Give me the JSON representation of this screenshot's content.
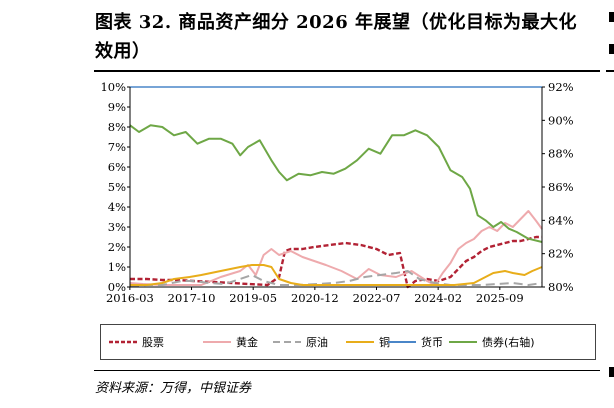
{
  "title": "图表 32. 商品资产细分 2026 年展望（优化目标为最大化效用）",
  "source": "资料来源：万得，中银证券",
  "colors": {
    "stock": "#b22234",
    "gold": "#eeaaad",
    "oil": "#a6a6a6",
    "copper": "#e8ad1a",
    "money": "#4a86c8",
    "bond": "#6ea746"
  },
  "chart_data": {
    "type": "line",
    "x_ticks": [
      "2016-03",
      "2017-10",
      "2019-05",
      "2020-12",
      "2022-07",
      "2024-02",
      "2025-09"
    ],
    "y_left": {
      "ylim": [
        0,
        10
      ],
      "ticks": [
        "0%",
        "1%",
        "2%",
        "3%",
        "4%",
        "5%",
        "6%",
        "7%",
        "8%",
        "9%",
        "10%"
      ]
    },
    "y_right": {
      "ylim": [
        80,
        92
      ],
      "ticks": [
        "80%",
        "82%",
        "84%",
        "86%",
        "88%",
        "90%",
        "92%"
      ]
    },
    "x_range": [
      2016.17,
      2026.75
    ],
    "series": [
      {
        "name": "股票",
        "color_key": "stock",
        "axis": "left",
        "dash": "heavy",
        "x": [
          2016.17,
          2016.6,
          2017.0,
          2017.4,
          2017.8,
          2018.3,
          2018.8,
          2019.2,
          2019.7,
          2020.0,
          2020.15,
          2020.3,
          2020.6,
          2020.9,
          2021.3,
          2021.7,
          2022.1,
          2022.5,
          2022.8,
          2023.1,
          2023.3,
          2023.5,
          2023.8,
          2024.1,
          2024.4,
          2024.6,
          2024.8,
          2025.0,
          2025.2,
          2025.4,
          2025.6,
          2025.8,
          2026.0,
          2026.2,
          2026.4,
          2026.6,
          2026.75
        ],
        "y": [
          0.4,
          0.4,
          0.35,
          0.35,
          0.3,
          0.25,
          0.2,
          0.15,
          0.1,
          0.5,
          1.8,
          1.9,
          1.9,
          2.0,
          2.1,
          2.2,
          2.1,
          1.9,
          1.6,
          1.7,
          0.0,
          0.3,
          0.4,
          0.3,
          0.5,
          0.9,
          1.3,
          1.5,
          1.8,
          2.0,
          2.1,
          2.2,
          2.3,
          2.3,
          2.4,
          2.5,
          2.5
        ]
      },
      {
        "name": "黄金",
        "color_key": "gold",
        "axis": "left",
        "dash": "solid",
        "x": [
          2016.17,
          2016.5,
          2017.0,
          2017.5,
          2018.0,
          2018.5,
          2019.0,
          2019.2,
          2019.4,
          2019.6,
          2019.8,
          2020.0,
          2020.3,
          2020.6,
          2020.9,
          2021.2,
          2021.6,
          2022.0,
          2022.3,
          2022.6,
          2023.0,
          2023.4,
          2023.8,
          2024.0,
          2024.2,
          2024.4,
          2024.6,
          2024.8,
          2025.0,
          2025.2,
          2025.4,
          2025.6,
          2025.8,
          2026.0,
          2026.2,
          2026.4,
          2026.6,
          2026.75
        ],
        "y": [
          0.2,
          0.15,
          0.1,
          0.1,
          0.1,
          0.5,
          0.8,
          1.1,
          0.6,
          1.6,
          1.9,
          1.6,
          1.8,
          1.5,
          1.3,
          1.1,
          0.8,
          0.4,
          0.9,
          0.6,
          0.5,
          0.8,
          0.3,
          0.1,
          0.7,
          1.2,
          1.9,
          2.2,
          2.4,
          2.8,
          3.0,
          2.8,
          3.2,
          3.0,
          3.4,
          3.8,
          3.3,
          2.9
        ]
      },
      {
        "name": "原油",
        "color_key": "oil",
        "axis": "left",
        "dash": "long",
        "x": [
          2016.17,
          2016.6,
          2017.0,
          2017.5,
          2017.8,
          2018.2,
          2018.6,
          2019.0,
          2019.3,
          2019.6,
          2020.0,
          2020.5,
          2021.0,
          2021.4,
          2021.8,
          2022.2,
          2022.6,
          2023.0,
          2023.3,
          2023.6,
          2024.0,
          2024.4,
          2024.8,
          2025.2,
          2025.6,
          2026.0,
          2026.4,
          2026.75
        ],
        "y": [
          0.05,
          0.1,
          0.1,
          0.3,
          0.3,
          0.2,
          0.15,
          0.4,
          0.6,
          0.3,
          0.1,
          0.1,
          0.15,
          0.2,
          0.3,
          0.5,
          0.6,
          0.7,
          0.8,
          0.4,
          0.2,
          0.1,
          0.1,
          0.1,
          0.15,
          0.2,
          0.1,
          0.2
        ]
      },
      {
        "name": "铜",
        "color_key": "copper",
        "axis": "left",
        "dash": "solid",
        "x": [
          2016.17,
          2016.6,
          2017.0,
          2017.3,
          2017.7,
          2018.0,
          2018.5,
          2019.0,
          2019.3,
          2019.6,
          2019.8,
          2020.0,
          2020.3,
          2020.6,
          2021.0,
          2021.5,
          2022.0,
          2022.5,
          2023.0,
          2023.5,
          2024.0,
          2024.5,
          2025.0,
          2025.3,
          2025.5,
          2025.8,
          2026.0,
          2026.3,
          2026.5,
          2026.75
        ],
        "y": [
          0.1,
          0.1,
          0.2,
          0.4,
          0.5,
          0.6,
          0.8,
          1.0,
          1.1,
          1.1,
          1.0,
          0.4,
          0.2,
          0.1,
          0.1,
          0.1,
          0.1,
          0.1,
          0.1,
          0.1,
          0.1,
          0.1,
          0.2,
          0.5,
          0.7,
          0.8,
          0.7,
          0.6,
          0.8,
          1.0
        ]
      },
      {
        "name": "货币",
        "color_key": "money",
        "axis": "left",
        "dash": "solid",
        "x": [
          2016.17,
          2026.75
        ],
        "y": [
          10,
          10
        ]
      },
      {
        "name": "债券(右轴)",
        "color_key": "bond",
        "axis": "right",
        "dash": "solid",
        "x": [
          2016.17,
          2016.4,
          2016.7,
          2017.0,
          2017.3,
          2017.6,
          2017.9,
          2018.2,
          2018.5,
          2018.8,
          2019.0,
          2019.2,
          2019.5,
          2019.8,
          2020.0,
          2020.2,
          2020.5,
          2020.8,
          2021.1,
          2021.4,
          2021.7,
          2022.0,
          2022.3,
          2022.6,
          2022.9,
          2023.2,
          2023.5,
          2023.8,
          2024.1,
          2024.4,
          2024.7,
          2024.9,
          2025.1,
          2025.3,
          2025.5,
          2025.7,
          2025.9,
          2026.1,
          2026.4,
          2026.75
        ],
        "y": [
          89.7,
          89.3,
          89.7,
          89.6,
          89.1,
          89.3,
          88.6,
          88.9,
          88.9,
          88.6,
          87.9,
          88.4,
          88.8,
          87.6,
          86.9,
          86.4,
          86.8,
          86.7,
          86.9,
          86.8,
          87.1,
          87.6,
          88.3,
          88.0,
          89.1,
          89.1,
          89.4,
          89.1,
          88.4,
          87.0,
          86.6,
          85.9,
          84.3,
          84.0,
          83.6,
          83.9,
          83.5,
          83.3,
          82.9,
          82.7
        ]
      }
    ]
  }
}
